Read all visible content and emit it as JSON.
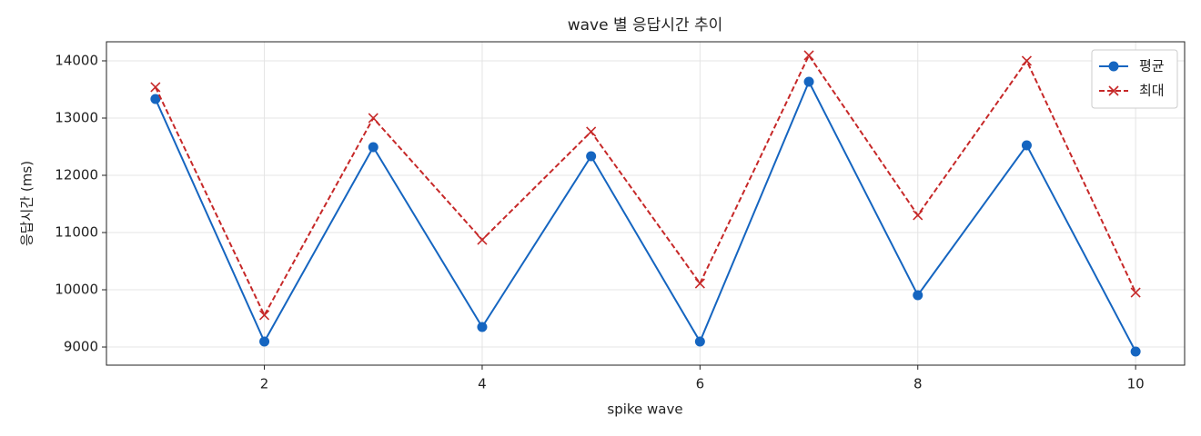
{
  "chart_data": {
    "type": "line",
    "title": "wave 별 응답시간 추이",
    "x_label": "spike wave",
    "y_label": "응답시간 (ms)",
    "x": [
      1,
      2,
      3,
      4,
      5,
      6,
      7,
      8,
      9,
      10
    ],
    "series": [
      {
        "name": "평균",
        "color": "#1565c0",
        "marker": "o",
        "dash": "solid",
        "values": [
          13333,
          9095,
          12492,
          9349,
          12333,
          9095,
          13635,
          9905,
          12524,
          8921
        ]
      },
      {
        "name": "최대",
        "color": "#c62828",
        "marker": "x",
        "dash": "dashed",
        "values": [
          13540,
          9556,
          13000,
          10873,
          12762,
          10111,
          14095,
          11302,
          14000,
          9952
        ]
      }
    ],
    "xlim": [
      0.55,
      10.45
    ],
    "xticks": [
      2,
      4,
      6,
      8,
      10
    ],
    "ylim": [
      8683,
      14333
    ],
    "yticks": [
      9000,
      10000,
      11000,
      12000,
      13000,
      14000
    ],
    "grid": true,
    "legend": "upper right"
  }
}
